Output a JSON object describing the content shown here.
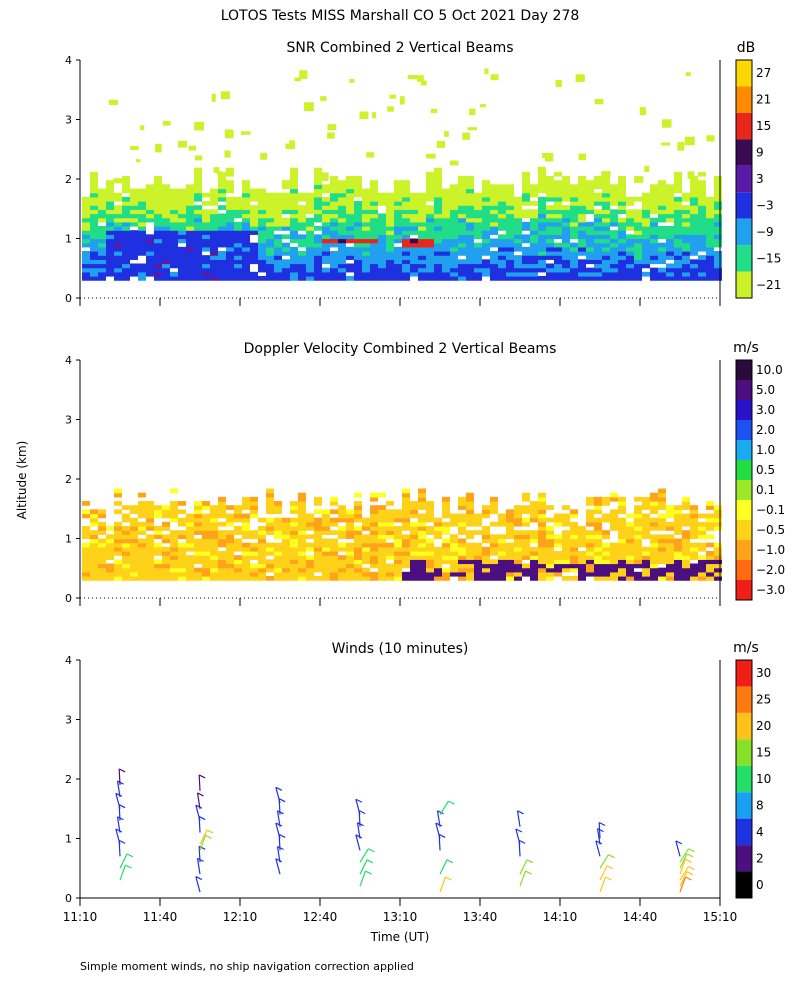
{
  "title": "LOTOS Tests MISS Marshall CO   5 Oct 2021 Day 278",
  "footnote": "Simple moment winds, no ship navigation correction applied",
  "shared_ylabel": "Altitude (km)",
  "chart_data": [
    {
      "type": "heatmap",
      "title": "SNR Combined 2 Vertical Beams",
      "units": "dB",
      "ylim": [
        0,
        4
      ],
      "yticks": [
        "0",
        "1",
        "2",
        "3",
        "4"
      ],
      "xlim_minutes": [
        670,
        910
      ],
      "colorbar": {
        "labels": [
          "27",
          "21",
          "15",
          "9",
          "3",
          "−3",
          "−9",
          "−15",
          "−21"
        ],
        "colors": [
          "#ffd700",
          "#ff8c00",
          "#e8261a",
          "#3a0a55",
          "#5a1aa8",
          "#1f30e0",
          "#22a0f0",
          "#22dd88",
          "#ccf22a"
        ]
      },
      "features": [
        {
          "from_min": 670,
          "to_min": 910,
          "base_km": 0.3,
          "top_km": 1.9,
          "note": "echo layer"
        },
        {
          "from_min": 678,
          "to_min": 735,
          "base_km": 0.3,
          "top_km": 1.1,
          "level": "−3",
          "note": "blue core"
        },
        {
          "from_min": 760,
          "to_min": 780,
          "base_km": 0.9,
          "top_km": 1.0,
          "level": "15",
          "note": "strong return"
        },
        {
          "from_min": 790,
          "to_min": 800,
          "base_km": 0.8,
          "top_km": 1.0,
          "level": "15",
          "note": "strong return"
        }
      ]
    },
    {
      "type": "heatmap",
      "title": "Doppler Velocity Combined 2 Vertical Beams",
      "units": "m/s",
      "ylim": [
        0,
        4
      ],
      "yticks": [
        "0",
        "1",
        "2",
        "3",
        "4"
      ],
      "xlim_minutes": [
        670,
        910
      ],
      "colorbar": {
        "labels": [
          "10.0",
          "5.0",
          "3.0",
          "2.0",
          "1.0",
          "0.5",
          "0.1",
          "−0.1",
          "−0.5",
          "−1.0",
          "−2.0",
          "−3.0"
        ],
        "colors": [
          "#2a0a3a",
          "#4b0f80",
          "#2a12c8",
          "#1d52f0",
          "#1aaaf0",
          "#22dd44",
          "#9be82a",
          "#ffff22",
          "#ffd21a",
          "#ffa31a",
          "#ff6a12",
          "#f01e16"
        ]
      },
      "features": [
        {
          "from_min": 670,
          "to_min": 910,
          "base_km": 0.3,
          "top_km": 1.6,
          "level": "−0.5",
          "note": "mostly downward"
        },
        {
          "from_min": 790,
          "to_min": 910,
          "base_km": 0.3,
          "top_km": 0.6,
          "level": "5.0",
          "note": "upward stripes"
        }
      ]
    },
    {
      "type": "wind barbs",
      "title": "Winds (10 minutes)",
      "units": "m/s",
      "xlabel": "Time (UT)",
      "ylim": [
        0,
        4
      ],
      "yticks": [
        "0",
        "1",
        "2",
        "3",
        "4"
      ],
      "xticks": [
        "11:10",
        "11:40",
        "12:10",
        "12:40",
        "13:10",
        "13:40",
        "14:10",
        "14:40",
        "15:10"
      ],
      "xlim_minutes": [
        670,
        910
      ],
      "colorbar": {
        "labels": [
          "30",
          "25",
          "20",
          "15",
          "10",
          "8",
          "4",
          "2",
          "0"
        ],
        "colors": [
          "#f01e16",
          "#ff7a12",
          "#ffc21a",
          "#88e02a",
          "#22dd66",
          "#1aa0f0",
          "#1d32e0",
          "#4b0f80",
          "#000000"
        ]
      },
      "profiles": [
        {
          "time": "11:25",
          "minute": 685,
          "levels": [
            {
              "km": 0.3,
              "speed": 14
            },
            {
              "km": 0.5,
              "speed": 11
            },
            {
              "km": 0.7,
              "speed": 5
            },
            {
              "km": 0.9,
              "speed": 5
            },
            {
              "km": 1.1,
              "speed": 4
            },
            {
              "km": 1.3,
              "speed": 4
            },
            {
              "km": 1.5,
              "speed": 4
            },
            {
              "km": 1.7,
              "speed": 4
            },
            {
              "km": 1.9,
              "speed": 3
            }
          ]
        },
        {
          "time": "11:55",
          "minute": 715,
          "levels": [
            {
              "km": 0.1,
              "speed": 5
            },
            {
              "km": 0.4,
              "speed": 4
            },
            {
              "km": 0.6,
              "speed": 4
            },
            {
              "km": 0.8,
              "speed": 19
            },
            {
              "km": 0.9,
              "speed": 21
            },
            {
              "km": 1.1,
              "speed": 5
            },
            {
              "km": 1.3,
              "speed": 4
            },
            {
              "km": 1.5,
              "speed": 3
            },
            {
              "km": 1.8,
              "speed": 3
            }
          ]
        },
        {
          "time": "12:25",
          "minute": 745,
          "levels": [
            {
              "km": 0.4,
              "speed": 4
            },
            {
              "km": 0.6,
              "speed": 4
            },
            {
              "km": 0.8,
              "speed": 4
            },
            {
              "km": 1.0,
              "speed": 4
            },
            {
              "km": 1.2,
              "speed": 4
            },
            {
              "km": 1.4,
              "speed": 4
            },
            {
              "km": 1.6,
              "speed": 4
            }
          ]
        },
        {
          "time": "12:55",
          "minute": 775,
          "levels": [
            {
              "km": 0.2,
              "speed": 14
            },
            {
              "km": 0.4,
              "speed": 12
            },
            {
              "km": 0.6,
              "speed": 12
            },
            {
              "km": 0.8,
              "speed": 5
            },
            {
              "km": 1.0,
              "speed": 4
            },
            {
              "km": 1.2,
              "speed": 4
            },
            {
              "km": 1.4,
              "speed": 6
            }
          ]
        },
        {
          "time": "13:25",
          "minute": 805,
          "levels": [
            {
              "km": 0.1,
              "speed": 20
            },
            {
              "km": 0.4,
              "speed": 14
            },
            {
              "km": 0.8,
              "speed": 6
            },
            {
              "km": 1.0,
              "speed": 4
            },
            {
              "km": 1.2,
              "speed": 4
            },
            {
              "km": 1.4,
              "speed": 12
            }
          ]
        },
        {
          "time": "13:55",
          "minute": 835,
          "levels": [
            {
              "km": 0.2,
              "speed": 19
            },
            {
              "km": 0.4,
              "speed": 17
            },
            {
              "km": 0.7,
              "speed": 5
            },
            {
              "km": 0.9,
              "speed": 4
            },
            {
              "km": 1.2,
              "speed": 4
            }
          ]
        },
        {
          "time": "14:25",
          "minute": 865,
          "levels": [
            {
              "km": 0.1,
              "speed": 24
            },
            {
              "km": 0.3,
              "speed": 20
            },
            {
              "km": 0.5,
              "speed": 15
            },
            {
              "km": 0.7,
              "speed": 5
            },
            {
              "km": 0.9,
              "speed": 4
            },
            {
              "km": 1.0,
              "speed": 4
            }
          ]
        },
        {
          "time": "14:55",
          "minute": 895,
          "levels": [
            {
              "km": 0.1,
              "speed": 26
            },
            {
              "km": 0.2,
              "speed": 24
            },
            {
              "km": 0.3,
              "speed": 22
            },
            {
              "km": 0.4,
              "speed": 20
            },
            {
              "km": 0.5,
              "speed": 18
            },
            {
              "km": 0.6,
              "speed": 16
            },
            {
              "km": 0.7,
              "speed": 4
            }
          ]
        }
      ]
    }
  ]
}
